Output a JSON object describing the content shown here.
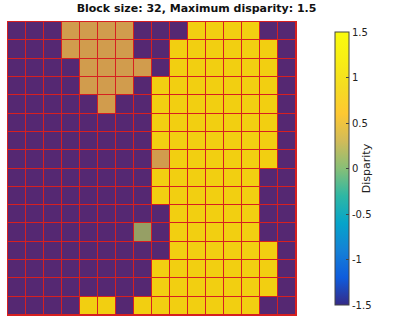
{
  "chart_data": {
    "type": "heatmap",
    "title": "Block size: 32, Maximum disparity: 1.5",
    "tick_labels": false,
    "z": [
      [
        -1.5,
        -1.5,
        -1.5,
        0.3,
        0.3,
        0.3,
        0.3,
        -1.5,
        -1.5,
        -1.5,
        1.5,
        1.5,
        1.5,
        1.5,
        -1.5,
        -1.5
      ],
      [
        -1.5,
        -1.5,
        -1.5,
        0.3,
        0.3,
        0.3,
        0.3,
        -1.5,
        -1.5,
        1.5,
        1.5,
        1.5,
        1.5,
        1.5,
        1.5,
        -1.5
      ],
      [
        -1.5,
        -1.5,
        -1.5,
        -1.5,
        0.3,
        0.3,
        0.3,
        0.3,
        -1.5,
        1.5,
        1.5,
        1.5,
        1.5,
        1.5,
        1.5,
        -1.5
      ],
      [
        -1.5,
        -1.5,
        -1.5,
        -1.5,
        0.3,
        0.3,
        0.3,
        -1.5,
        1.5,
        1.5,
        1.5,
        1.5,
        1.5,
        1.5,
        1.5,
        -1.5
      ],
      [
        -1.5,
        -1.5,
        -1.5,
        -1.5,
        -1.5,
        0.3,
        -1.5,
        -1.5,
        1.5,
        1.5,
        1.5,
        1.5,
        1.5,
        1.5,
        1.5,
        -1.5
      ],
      [
        -1.5,
        -1.5,
        -1.5,
        -1.5,
        -1.5,
        -1.5,
        -1.5,
        -1.5,
        1.5,
        1.5,
        1.5,
        1.5,
        1.5,
        1.5,
        1.5,
        -1.5
      ],
      [
        -1.5,
        -1.5,
        -1.5,
        -1.5,
        -1.5,
        -1.5,
        -1.5,
        -1.5,
        1.5,
        1.5,
        1.5,
        1.5,
        1.5,
        1.5,
        1.5,
        -1.5
      ],
      [
        -1.5,
        -1.5,
        -1.5,
        -1.5,
        -1.5,
        -1.5,
        -1.5,
        -1.5,
        0.3,
        1.5,
        1.5,
        1.5,
        1.5,
        1.5,
        1.5,
        -1.5
      ],
      [
        -1.5,
        -1.5,
        -1.5,
        -1.5,
        -1.5,
        -1.5,
        -1.5,
        -1.5,
        1.5,
        1.5,
        1.5,
        1.5,
        1.5,
        1.5,
        -1.5,
        -1.5
      ],
      [
        -1.5,
        -1.5,
        -1.5,
        -1.5,
        -1.5,
        -1.5,
        -1.5,
        -1.5,
        1.5,
        1.5,
        1.5,
        1.5,
        1.5,
        1.5,
        -1.5,
        -1.5
      ],
      [
        -1.5,
        -1.5,
        -1.5,
        -1.5,
        -1.5,
        -1.5,
        -1.5,
        -1.5,
        -1.5,
        1.5,
        1.5,
        1.5,
        1.5,
        1.5,
        -1.5,
        -1.5
      ],
      [
        -1.5,
        -1.5,
        -1.5,
        -1.5,
        -1.5,
        -1.5,
        -1.5,
        0,
        -1.5,
        1.5,
        1.5,
        1.5,
        1.5,
        1.5,
        -1.5,
        -1.5
      ],
      [
        -1.5,
        -1.5,
        -1.5,
        -1.5,
        -1.5,
        -1.5,
        -1.5,
        -1.5,
        -1.5,
        1.5,
        1.5,
        1.5,
        1.5,
        1.5,
        1.5,
        -1.5
      ],
      [
        -1.5,
        -1.5,
        -1.5,
        -1.5,
        -1.5,
        -1.5,
        -1.5,
        -1.5,
        1.5,
        1.5,
        1.5,
        1.5,
        1.5,
        1.5,
        1.5,
        -1.5
      ],
      [
        -1.5,
        -1.5,
        -1.5,
        -1.5,
        -1.5,
        -1.5,
        -1.5,
        -1.5,
        1.5,
        1.5,
        1.5,
        1.5,
        1.5,
        1.5,
        1.5,
        -1.5
      ],
      [
        -1.5,
        -1.5,
        -1.5,
        -1.5,
        1.5,
        1.5,
        -1.5,
        1.5,
        1.5,
        1.5,
        1.5,
        1.5,
        1.5,
        1.5,
        -1.5,
        -1.5
      ]
    ],
    "colorbar": {
      "title": "Disparity",
      "range": [
        -1.5,
        1.5
      ],
      "ticks": [
        -1.5,
        -1,
        -0.5,
        0,
        0.5,
        1,
        1.5
      ]
    }
  }
}
